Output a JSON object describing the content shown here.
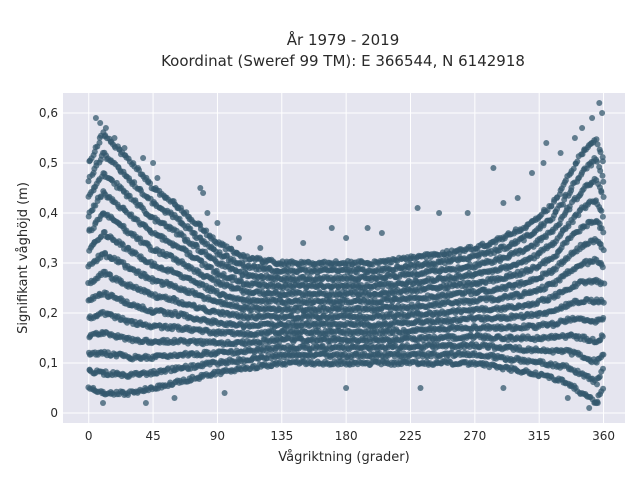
{
  "chart_data": {
    "type": "scatter",
    "title_line1": "År 1979 - 2019",
    "title_line2": "Koordinat (Sweref 99 TM): E 366544, N 6142918",
    "xlabel": "Vågriktning (grader)",
    "ylabel": "Signifikant våghöjd (m)",
    "xlim": [
      -18,
      375
    ],
    "ylim": [
      -0.02,
      0.64
    ],
    "x_ticks": [
      0,
      45,
      90,
      135,
      180,
      225,
      270,
      315,
      360
    ],
    "x_tick_labels": [
      "0",
      "45",
      "90",
      "135",
      "180",
      "225",
      "270",
      "315",
      "360"
    ],
    "y_ticks": [
      0,
      0.1,
      0.2,
      0.3,
      0.4,
      0.5,
      0.6
    ],
    "y_tick_labels": [
      "0",
      "0,1",
      "0,2",
      "0,3",
      "0,4",
      "0,5",
      "0,6"
    ],
    "grid": true,
    "background_color": "#e5e5ef",
    "grid_color": "#ffffff",
    "marker_color": "#34586e",
    "marker_opacity": 0.75,
    "envelope_x": [
      0,
      10,
      20,
      30,
      45,
      60,
      75,
      90,
      110,
      135,
      160,
      180,
      200,
      225,
      250,
      270,
      290,
      310,
      325,
      335,
      345,
      355,
      360
    ],
    "envelope_upper": [
      0.5,
      0.56,
      0.53,
      0.5,
      0.45,
      0.42,
      0.38,
      0.34,
      0.31,
      0.3,
      0.3,
      0.3,
      0.3,
      0.31,
      0.32,
      0.33,
      0.35,
      0.38,
      0.42,
      0.47,
      0.52,
      0.55,
      0.5
    ],
    "envelope_lower": [
      0.05,
      0.04,
      0.04,
      0.04,
      0.05,
      0.06,
      0.07,
      0.08,
      0.09,
      0.1,
      0.1,
      0.1,
      0.1,
      0.1,
      0.1,
      0.1,
      0.09,
      0.08,
      0.07,
      0.06,
      0.04,
      0.02,
      0.05
    ],
    "outliers": [
      {
        "x": 5,
        "y": 0.59
      },
      {
        "x": 8,
        "y": 0.58
      },
      {
        "x": 12,
        "y": 0.57
      },
      {
        "x": 18,
        "y": 0.55
      },
      {
        "x": 25,
        "y": 0.53
      },
      {
        "x": 38,
        "y": 0.51
      },
      {
        "x": 45,
        "y": 0.5
      },
      {
        "x": 48,
        "y": 0.47
      },
      {
        "x": 62,
        "y": 0.41
      },
      {
        "x": 78,
        "y": 0.45
      },
      {
        "x": 80,
        "y": 0.44
      },
      {
        "x": 83,
        "y": 0.4
      },
      {
        "x": 90,
        "y": 0.38
      },
      {
        "x": 105,
        "y": 0.35
      },
      {
        "x": 120,
        "y": 0.33
      },
      {
        "x": 150,
        "y": 0.34
      },
      {
        "x": 170,
        "y": 0.37
      },
      {
        "x": 180,
        "y": 0.35
      },
      {
        "x": 195,
        "y": 0.37
      },
      {
        "x": 205,
        "y": 0.36
      },
      {
        "x": 230,
        "y": 0.41
      },
      {
        "x": 245,
        "y": 0.4
      },
      {
        "x": 265,
        "y": 0.4
      },
      {
        "x": 283,
        "y": 0.49
      },
      {
        "x": 290,
        "y": 0.42
      },
      {
        "x": 300,
        "y": 0.43
      },
      {
        "x": 310,
        "y": 0.48
      },
      {
        "x": 318,
        "y": 0.5
      },
      {
        "x": 320,
        "y": 0.54
      },
      {
        "x": 330,
        "y": 0.52
      },
      {
        "x": 340,
        "y": 0.55
      },
      {
        "x": 345,
        "y": 0.57
      },
      {
        "x": 352,
        "y": 0.59
      },
      {
        "x": 357,
        "y": 0.62
      },
      {
        "x": 359,
        "y": 0.6
      },
      {
        "x": 10,
        "y": 0.02
      },
      {
        "x": 40,
        "y": 0.02
      },
      {
        "x": 60,
        "y": 0.03
      },
      {
        "x": 95,
        "y": 0.04
      },
      {
        "x": 180,
        "y": 0.05
      },
      {
        "x": 232,
        "y": 0.05
      },
      {
        "x": 290,
        "y": 0.05
      },
      {
        "x": 335,
        "y": 0.03
      },
      {
        "x": 350,
        "y": 0.01
      },
      {
        "x": 356,
        "y": 0.02
      }
    ]
  }
}
